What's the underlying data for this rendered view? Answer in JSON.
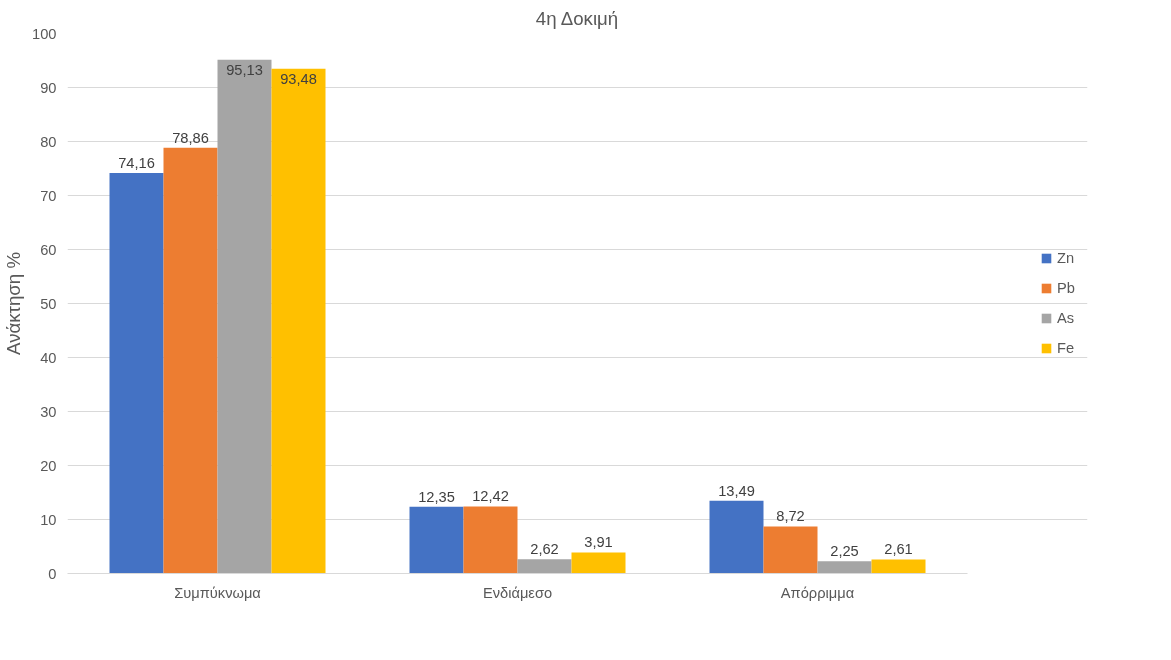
{
  "chart_data": {
    "type": "bar",
    "title": "4η Δοκιμή",
    "ylabel": "Ανάκτηση %",
    "categories": [
      "Συμπύκνωμα",
      "Ενδιάμεσο",
      "Απόρριμμα"
    ],
    "series": [
      {
        "name": "Zn",
        "color": "#4472c4",
        "values": [
          74.16,
          12.35,
          13.49
        ],
        "value_labels": [
          "74,16",
          "12,35",
          "13,49"
        ]
      },
      {
        "name": "Pb",
        "color": "#ed7d31",
        "values": [
          78.86,
          12.42,
          8.72
        ],
        "value_labels": [
          "78,86",
          "12,42",
          "8,72"
        ]
      },
      {
        "name": "As",
        "color": "#a5a5a5",
        "values": [
          95.13,
          2.62,
          2.25
        ],
        "value_labels": [
          "95,13",
          "2,62",
          "2,25"
        ]
      },
      {
        "name": "Fe",
        "color": "#ffc000",
        "values": [
          93.48,
          3.91,
          2.61
        ],
        "value_labels": [
          "93,48",
          "3,91",
          "2,61"
        ]
      }
    ],
    "ylim": [
      0,
      100
    ],
    "yticks": [
      0,
      10,
      20,
      30,
      40,
      50,
      60,
      70,
      80,
      90,
      100
    ],
    "grid": "y",
    "legend": "right"
  }
}
